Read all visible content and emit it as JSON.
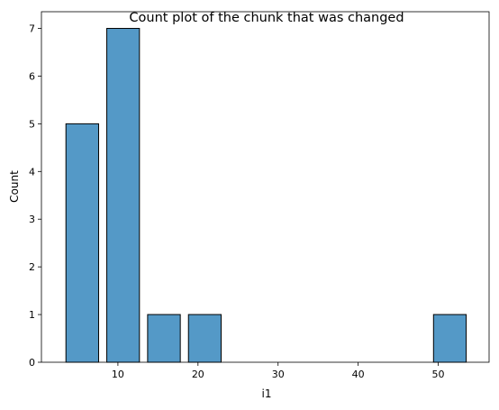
{
  "chart_data": {
    "type": "bar",
    "title": "Count plot of the chunk that was changed",
    "xlabel": "i1",
    "ylabel": "Count",
    "xlim": [
      0.45,
      56.35
    ],
    "ylim": [
      0,
      7.35
    ],
    "xticks": [
      10,
      20,
      30,
      40,
      50
    ],
    "yticks": [
      0,
      1,
      2,
      3,
      4,
      5,
      6,
      7
    ],
    "bar_color": "#5499c7",
    "edge_color": "#000000",
    "grid": false,
    "legend": "none",
    "bins": [
      {
        "x0": 3.0,
        "x1": 8.1,
        "count": 5
      },
      {
        "x0": 8.1,
        "x1": 13.2,
        "count": 7
      },
      {
        "x0": 13.2,
        "x1": 18.3,
        "count": 1
      },
      {
        "x0": 18.3,
        "x1": 23.4,
        "count": 1
      },
      {
        "x0": 23.4,
        "x1": 28.5,
        "count": 0
      },
      {
        "x0": 28.5,
        "x1": 33.6,
        "count": 0
      },
      {
        "x0": 33.6,
        "x1": 38.7,
        "count": 0
      },
      {
        "x0": 38.7,
        "x1": 43.8,
        "count": 0
      },
      {
        "x0": 43.8,
        "x1": 48.9,
        "count": 0
      },
      {
        "x0": 48.9,
        "x1": 54.0,
        "count": 1
      }
    ]
  }
}
